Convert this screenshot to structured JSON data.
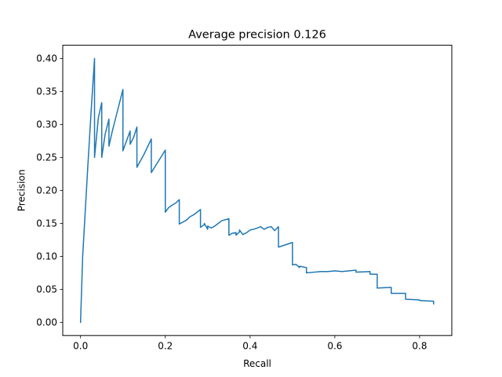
{
  "chart_data": {
    "type": "line",
    "title": "Average precision 0.126",
    "xlabel": "Recall",
    "ylabel": "Precision",
    "xlim": [
      -0.042,
      0.876
    ],
    "ylim": [
      -0.02,
      0.42
    ],
    "grid": false,
    "x_ticks": [
      0.0,
      0.2,
      0.4,
      0.6,
      0.8
    ],
    "x_tick_labels": [
      "0.0",
      "0.2",
      "0.4",
      "0.6",
      "0.8"
    ],
    "y_ticks": [
      0.0,
      0.05,
      0.1,
      0.15,
      0.2,
      0.25,
      0.3,
      0.35,
      0.4
    ],
    "y_tick_labels": [
      "0.00",
      "0.05",
      "0.10",
      "0.15",
      "0.20",
      "0.25",
      "0.30",
      "0.35",
      "0.40"
    ],
    "series": [
      {
        "color": "#1f77b4",
        "x": [
          0.0,
          0.005,
          0.017,
          0.025,
          0.033,
          0.033,
          0.042,
          0.05,
          0.05,
          0.058,
          0.067,
          0.067,
          0.075,
          0.083,
          0.1,
          0.1,
          0.117,
          0.117,
          0.125,
          0.133,
          0.133,
          0.15,
          0.167,
          0.167,
          0.2,
          0.2,
          0.208,
          0.217,
          0.225,
          0.233,
          0.233,
          0.25,
          0.258,
          0.267,
          0.275,
          0.283,
          0.283,
          0.292,
          0.292,
          0.3,
          0.3,
          0.308,
          0.317,
          0.325,
          0.333,
          0.35,
          0.35,
          0.358,
          0.367,
          0.367,
          0.375,
          0.375,
          0.383,
          0.392,
          0.4,
          0.408,
          0.417,
          0.425,
          0.433,
          0.442,
          0.45,
          0.458,
          0.467,
          0.467,
          0.5,
          0.5,
          0.508,
          0.517,
          0.517,
          0.533,
          0.533,
          0.55,
          0.567,
          0.583,
          0.6,
          0.617,
          0.633,
          0.65,
          0.65,
          0.683,
          0.683,
          0.7,
          0.7,
          0.733,
          0.733,
          0.767,
          0.767,
          0.8,
          0.8,
          0.833,
          0.833
        ],
        "y": [
          0.0,
          0.1,
          0.235,
          0.32,
          0.4,
          0.25,
          0.31,
          0.333,
          0.25,
          0.285,
          0.308,
          0.267,
          0.29,
          0.31,
          0.353,
          0.26,
          0.29,
          0.27,
          0.28,
          0.296,
          0.235,
          0.255,
          0.278,
          0.227,
          0.261,
          0.167,
          0.174,
          0.178,
          0.181,
          0.186,
          0.149,
          0.155,
          0.16,
          0.163,
          0.167,
          0.171,
          0.144,
          0.148,
          0.15,
          0.141,
          0.146,
          0.143,
          0.146,
          0.15,
          0.154,
          0.157,
          0.132,
          0.135,
          0.136,
          0.132,
          0.137,
          0.14,
          0.133,
          0.136,
          0.14,
          0.141,
          0.143,
          0.145,
          0.141,
          0.144,
          0.145,
          0.139,
          0.145,
          0.114,
          0.121,
          0.087,
          0.088,
          0.083,
          0.085,
          0.083,
          0.075,
          0.076,
          0.077,
          0.077,
          0.078,
          0.077,
          0.078,
          0.079,
          0.076,
          0.077,
          0.073,
          0.073,
          0.052,
          0.053,
          0.044,
          0.044,
          0.035,
          0.034,
          0.033,
          0.032,
          0.028
        ]
      }
    ]
  }
}
